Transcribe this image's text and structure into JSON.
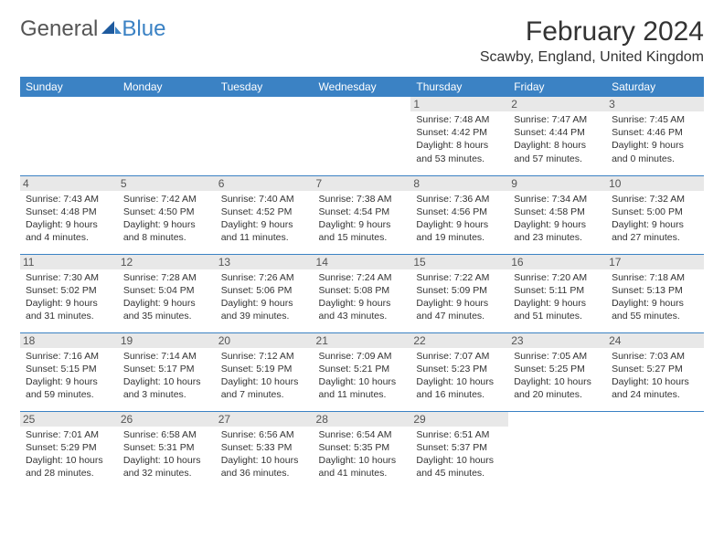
{
  "logo": {
    "part1": "General",
    "part2": "Blue"
  },
  "title": "February 2024",
  "location": "Scawby, England, United Kingdom",
  "colors": {
    "header_bg": "#3b82c4",
    "daynum_bg": "#e8e8e8",
    "border": "#3b82c4"
  },
  "weekdays": [
    "Sunday",
    "Monday",
    "Tuesday",
    "Wednesday",
    "Thursday",
    "Friday",
    "Saturday"
  ],
  "weeks": [
    [
      {
        "empty": true
      },
      {
        "empty": true
      },
      {
        "empty": true
      },
      {
        "empty": true
      },
      {
        "day": "1",
        "sunrise": "Sunrise: 7:48 AM",
        "sunset": "Sunset: 4:42 PM",
        "daylight1": "Daylight: 8 hours",
        "daylight2": "and 53 minutes."
      },
      {
        "day": "2",
        "sunrise": "Sunrise: 7:47 AM",
        "sunset": "Sunset: 4:44 PM",
        "daylight1": "Daylight: 8 hours",
        "daylight2": "and 57 minutes."
      },
      {
        "day": "3",
        "sunrise": "Sunrise: 7:45 AM",
        "sunset": "Sunset: 4:46 PM",
        "daylight1": "Daylight: 9 hours",
        "daylight2": "and 0 minutes."
      }
    ],
    [
      {
        "day": "4",
        "sunrise": "Sunrise: 7:43 AM",
        "sunset": "Sunset: 4:48 PM",
        "daylight1": "Daylight: 9 hours",
        "daylight2": "and 4 minutes."
      },
      {
        "day": "5",
        "sunrise": "Sunrise: 7:42 AM",
        "sunset": "Sunset: 4:50 PM",
        "daylight1": "Daylight: 9 hours",
        "daylight2": "and 8 minutes."
      },
      {
        "day": "6",
        "sunrise": "Sunrise: 7:40 AM",
        "sunset": "Sunset: 4:52 PM",
        "daylight1": "Daylight: 9 hours",
        "daylight2": "and 11 minutes."
      },
      {
        "day": "7",
        "sunrise": "Sunrise: 7:38 AM",
        "sunset": "Sunset: 4:54 PM",
        "daylight1": "Daylight: 9 hours",
        "daylight2": "and 15 minutes."
      },
      {
        "day": "8",
        "sunrise": "Sunrise: 7:36 AM",
        "sunset": "Sunset: 4:56 PM",
        "daylight1": "Daylight: 9 hours",
        "daylight2": "and 19 minutes."
      },
      {
        "day": "9",
        "sunrise": "Sunrise: 7:34 AM",
        "sunset": "Sunset: 4:58 PM",
        "daylight1": "Daylight: 9 hours",
        "daylight2": "and 23 minutes."
      },
      {
        "day": "10",
        "sunrise": "Sunrise: 7:32 AM",
        "sunset": "Sunset: 5:00 PM",
        "daylight1": "Daylight: 9 hours",
        "daylight2": "and 27 minutes."
      }
    ],
    [
      {
        "day": "11",
        "sunrise": "Sunrise: 7:30 AM",
        "sunset": "Sunset: 5:02 PM",
        "daylight1": "Daylight: 9 hours",
        "daylight2": "and 31 minutes."
      },
      {
        "day": "12",
        "sunrise": "Sunrise: 7:28 AM",
        "sunset": "Sunset: 5:04 PM",
        "daylight1": "Daylight: 9 hours",
        "daylight2": "and 35 minutes."
      },
      {
        "day": "13",
        "sunrise": "Sunrise: 7:26 AM",
        "sunset": "Sunset: 5:06 PM",
        "daylight1": "Daylight: 9 hours",
        "daylight2": "and 39 minutes."
      },
      {
        "day": "14",
        "sunrise": "Sunrise: 7:24 AM",
        "sunset": "Sunset: 5:08 PM",
        "daylight1": "Daylight: 9 hours",
        "daylight2": "and 43 minutes."
      },
      {
        "day": "15",
        "sunrise": "Sunrise: 7:22 AM",
        "sunset": "Sunset: 5:09 PM",
        "daylight1": "Daylight: 9 hours",
        "daylight2": "and 47 minutes."
      },
      {
        "day": "16",
        "sunrise": "Sunrise: 7:20 AM",
        "sunset": "Sunset: 5:11 PM",
        "daylight1": "Daylight: 9 hours",
        "daylight2": "and 51 minutes."
      },
      {
        "day": "17",
        "sunrise": "Sunrise: 7:18 AM",
        "sunset": "Sunset: 5:13 PM",
        "daylight1": "Daylight: 9 hours",
        "daylight2": "and 55 minutes."
      }
    ],
    [
      {
        "day": "18",
        "sunrise": "Sunrise: 7:16 AM",
        "sunset": "Sunset: 5:15 PM",
        "daylight1": "Daylight: 9 hours",
        "daylight2": "and 59 minutes."
      },
      {
        "day": "19",
        "sunrise": "Sunrise: 7:14 AM",
        "sunset": "Sunset: 5:17 PM",
        "daylight1": "Daylight: 10 hours",
        "daylight2": "and 3 minutes."
      },
      {
        "day": "20",
        "sunrise": "Sunrise: 7:12 AM",
        "sunset": "Sunset: 5:19 PM",
        "daylight1": "Daylight: 10 hours",
        "daylight2": "and 7 minutes."
      },
      {
        "day": "21",
        "sunrise": "Sunrise: 7:09 AM",
        "sunset": "Sunset: 5:21 PM",
        "daylight1": "Daylight: 10 hours",
        "daylight2": "and 11 minutes."
      },
      {
        "day": "22",
        "sunrise": "Sunrise: 7:07 AM",
        "sunset": "Sunset: 5:23 PM",
        "daylight1": "Daylight: 10 hours",
        "daylight2": "and 16 minutes."
      },
      {
        "day": "23",
        "sunrise": "Sunrise: 7:05 AM",
        "sunset": "Sunset: 5:25 PM",
        "daylight1": "Daylight: 10 hours",
        "daylight2": "and 20 minutes."
      },
      {
        "day": "24",
        "sunrise": "Sunrise: 7:03 AM",
        "sunset": "Sunset: 5:27 PM",
        "daylight1": "Daylight: 10 hours",
        "daylight2": "and 24 minutes."
      }
    ],
    [
      {
        "day": "25",
        "sunrise": "Sunrise: 7:01 AM",
        "sunset": "Sunset: 5:29 PM",
        "daylight1": "Daylight: 10 hours",
        "daylight2": "and 28 minutes."
      },
      {
        "day": "26",
        "sunrise": "Sunrise: 6:58 AM",
        "sunset": "Sunset: 5:31 PM",
        "daylight1": "Daylight: 10 hours",
        "daylight2": "and 32 minutes."
      },
      {
        "day": "27",
        "sunrise": "Sunrise: 6:56 AM",
        "sunset": "Sunset: 5:33 PM",
        "daylight1": "Daylight: 10 hours",
        "daylight2": "and 36 minutes."
      },
      {
        "day": "28",
        "sunrise": "Sunrise: 6:54 AM",
        "sunset": "Sunset: 5:35 PM",
        "daylight1": "Daylight: 10 hours",
        "daylight2": "and 41 minutes."
      },
      {
        "day": "29",
        "sunrise": "Sunrise: 6:51 AM",
        "sunset": "Sunset: 5:37 PM",
        "daylight1": "Daylight: 10 hours",
        "daylight2": "and 45 minutes."
      },
      {
        "empty": true
      },
      {
        "empty": true
      }
    ]
  ]
}
